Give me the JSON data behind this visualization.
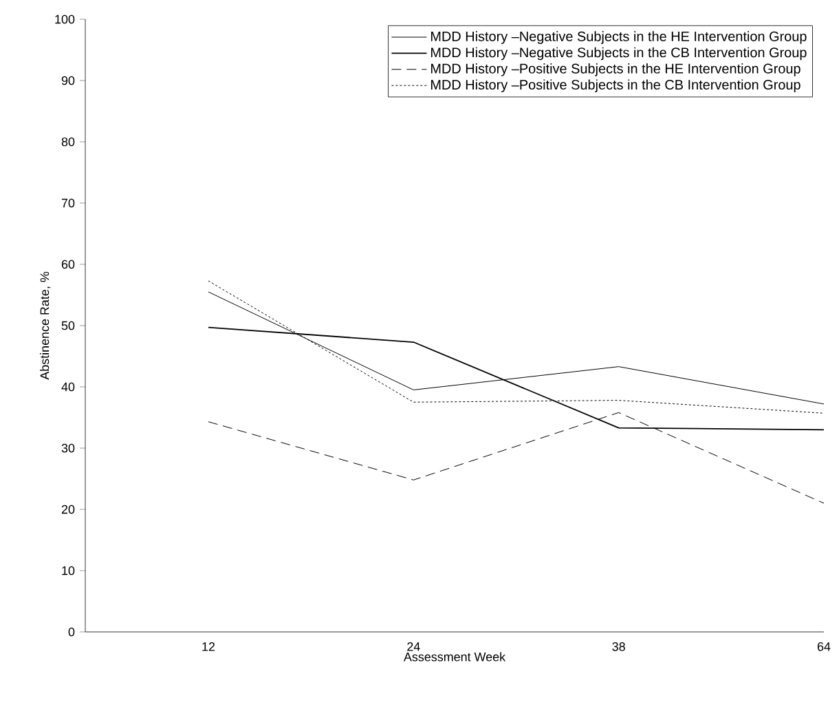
{
  "chart_data": {
    "type": "line",
    "xlabel": "Assessment Week",
    "ylabel": "Abstinence Rate, %",
    "categories": [
      "12",
      "24",
      "38",
      "64"
    ],
    "ylim": [
      0,
      100
    ],
    "yticks": [
      0,
      10,
      20,
      30,
      40,
      50,
      60,
      70,
      80,
      90,
      100
    ],
    "grid": false,
    "legend": "top right",
    "marker": "none",
    "series": [
      {
        "name": "MDD History –Negative Subjects in the HE Intervention Group",
        "color": "#000000",
        "line_style": "solid",
        "values": [
          55.5,
          39.5,
          43.3,
          37.2
        ]
      },
      {
        "name": "MDD History –Negative Subjects in the CB Intervention Group",
        "color": "#000000",
        "line_style": "solid",
        "values": [
          49.7,
          47.3,
          33.3,
          33.0
        ]
      },
      {
        "name": "MDD History –Positive Subjects in the HE Intervention Group",
        "color": "#000000",
        "line_style": "dashed",
        "values": [
          34.3,
          24.8,
          35.8,
          21.0
        ]
      },
      {
        "name": "MDD History –Positive Subjects in the CB Intervention Group",
        "color": "#000000",
        "line_style": "dotted",
        "values": [
          57.3,
          37.5,
          37.8,
          35.7
        ]
      }
    ]
  }
}
